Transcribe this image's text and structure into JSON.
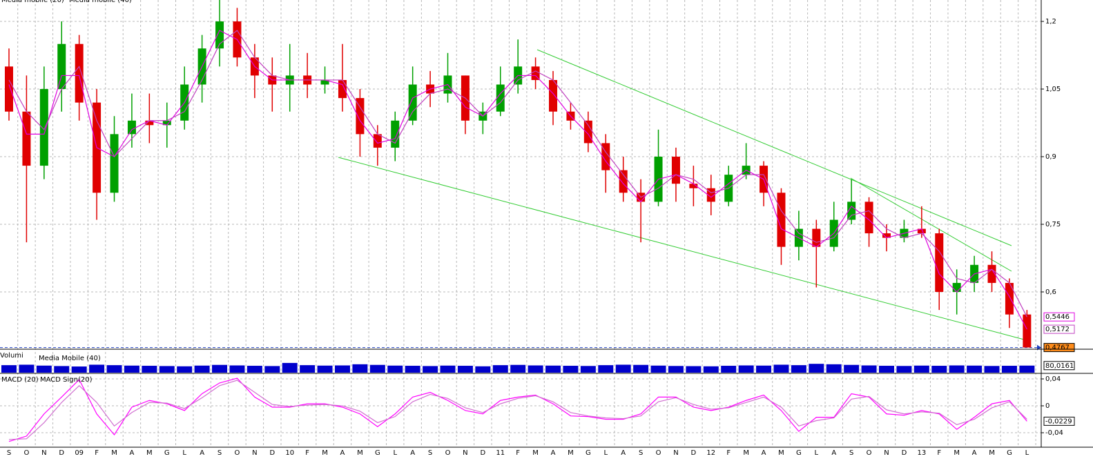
{
  "chart_data": [
    {
      "type": "candlestick",
      "categories": [
        "S",
        "O",
        "N",
        "D",
        "09",
        "F",
        "M",
        "A",
        "M",
        "G",
        "L",
        "A",
        "S",
        "O",
        "N",
        "D",
        "10",
        "F",
        "M",
        "A",
        "M",
        "G",
        "L",
        "A",
        "S",
        "O",
        "N",
        "D",
        "11",
        "F",
        "M",
        "A",
        "M",
        "G",
        "L",
        "A",
        "S",
        "O",
        "N",
        "D",
        "12",
        "F",
        "M",
        "A",
        "M",
        "G",
        "L",
        "A",
        "S",
        "O",
        "N",
        "D",
        "13",
        "F",
        "M",
        "A",
        "M",
        "G",
        "L"
      ],
      "year_label_color": "#e000e0",
      "open": [
        1.1,
        1.0,
        0.88,
        1.05,
        1.15,
        1.02,
        0.82,
        0.95,
        0.98,
        0.97,
        0.98,
        1.06,
        1.14,
        1.2,
        1.12,
        1.08,
        1.06,
        1.08,
        1.06,
        1.07,
        1.03,
        0.95,
        0.92,
        0.98,
        1.06,
        1.04,
        1.08,
        0.98,
        1.0,
        1.06,
        1.1,
        1.07,
        1.0,
        0.98,
        0.93,
        0.87,
        0.82,
        0.8,
        0.9,
        0.84,
        0.83,
        0.8,
        0.86,
        0.88,
        0.82,
        0.7,
        0.74,
        0.7,
        0.76,
        0.8,
        0.73,
        0.72,
        0.74,
        0.73,
        0.6,
        0.62,
        0.66,
        0.62,
        0.55
      ],
      "high": [
        1.14,
        1.08,
        1.1,
        1.2,
        1.17,
        1.05,
        0.99,
        1.04,
        1.04,
        1.02,
        1.1,
        1.17,
        1.25,
        1.23,
        1.15,
        1.12,
        1.15,
        1.13,
        1.1,
        1.15,
        1.05,
        0.97,
        1.0,
        1.1,
        1.09,
        1.13,
        1.08,
        1.02,
        1.1,
        1.16,
        1.12,
        1.09,
        1.02,
        1.0,
        0.95,
        0.9,
        0.85,
        0.96,
        0.92,
        0.88,
        0.86,
        0.88,
        0.93,
        0.89,
        0.83,
        0.78,
        0.76,
        0.8,
        0.85,
        0.81,
        0.75,
        0.76,
        0.79,
        0.74,
        0.65,
        0.68,
        0.69,
        0.63,
        0.56
      ],
      "low": [
        0.98,
        0.71,
        0.85,
        1.0,
        0.98,
        0.76,
        0.8,
        0.92,
        0.93,
        0.92,
        0.96,
        1.02,
        1.1,
        1.1,
        1.03,
        1.0,
        1.0,
        1.03,
        1.04,
        1.0,
        0.9,
        0.88,
        0.89,
        0.97,
        1.01,
        1.02,
        0.95,
        0.95,
        0.99,
        1.04,
        1.05,
        0.97,
        0.96,
        0.91,
        0.82,
        0.8,
        0.71,
        0.79,
        0.8,
        0.79,
        0.77,
        0.79,
        0.85,
        0.79,
        0.66,
        0.67,
        0.61,
        0.69,
        0.75,
        0.7,
        0.69,
        0.71,
        0.72,
        0.56,
        0.55,
        0.6,
        0.6,
        0.52,
        0.4767
      ],
      "close": [
        1.0,
        0.88,
        1.05,
        1.15,
        1.02,
        0.82,
        0.95,
        0.98,
        0.97,
        0.98,
        1.06,
        1.14,
        1.2,
        1.12,
        1.08,
        1.06,
        1.08,
        1.06,
        1.07,
        1.03,
        0.95,
        0.92,
        0.98,
        1.06,
        1.04,
        1.08,
        0.98,
        1.0,
        1.06,
        1.1,
        1.07,
        1.0,
        0.98,
        0.93,
        0.87,
        0.82,
        0.8,
        0.9,
        0.84,
        0.83,
        0.8,
        0.86,
        0.88,
        0.82,
        0.7,
        0.74,
        0.7,
        0.76,
        0.8,
        0.73,
        0.72,
        0.74,
        0.73,
        0.6,
        0.62,
        0.66,
        0.62,
        0.55,
        0.4767
      ],
      "up_color": "#00a000",
      "down_color": "#e00000",
      "series": [
        {
          "name": "Media mobile (20)",
          "color": "#e000e0",
          "values": [
            1.06,
            0.95,
            0.95,
            1.08,
            1.08,
            0.92,
            0.9,
            0.96,
            0.98,
            0.97,
            1.02,
            1.1,
            1.18,
            1.16,
            1.1,
            1.07,
            1.07,
            1.07,
            1.07,
            1.06,
            0.98,
            0.93,
            0.94,
            1.03,
            1.05,
            1.06,
            1.01,
            0.99,
            1.04,
            1.08,
            1.08,
            1.04,
            0.99,
            0.95,
            0.89,
            0.84,
            0.8,
            0.85,
            0.86,
            0.84,
            0.81,
            0.84,
            0.87,
            0.85,
            0.74,
            0.72,
            0.7,
            0.73,
            0.79,
            0.76,
            0.72,
            0.73,
            0.74,
            0.64,
            0.6,
            0.64,
            0.65,
            0.59,
            0.5172
          ]
        },
        {
          "name": "Media mobile (40)",
          "color": "#c040c0",
          "values": [
            1.07,
            1.0,
            0.96,
            1.05,
            1.1,
            0.98,
            0.9,
            0.94,
            0.98,
            0.98,
            1.0,
            1.07,
            1.15,
            1.18,
            1.12,
            1.08,
            1.07,
            1.07,
            1.07,
            1.07,
            1.01,
            0.95,
            0.93,
            1.0,
            1.04,
            1.05,
            1.03,
            0.99,
            1.02,
            1.07,
            1.09,
            1.07,
            1.02,
            0.97,
            0.91,
            0.86,
            0.81,
            0.83,
            0.86,
            0.85,
            0.82,
            0.83,
            0.86,
            0.86,
            0.78,
            0.73,
            0.71,
            0.72,
            0.77,
            0.78,
            0.74,
            0.72,
            0.73,
            0.69,
            0.63,
            0.62,
            0.65,
            0.62,
            0.5446
          ]
        }
      ],
      "last_labels": [
        {
          "value": 0.5446,
          "label": "0,5446",
          "color": "#e000e0"
        },
        {
          "value": 0.5172,
          "label": "0,5172",
          "color": "#c040c0"
        },
        {
          "value": 0.4767,
          "label": "0,4767",
          "color": "#ff8c1a"
        }
      ],
      "ylim": [
        0.4745,
        1.2475
      ],
      "yticks": [
        {
          "value": 0.6,
          "label": "0,6"
        },
        {
          "value": 0.75,
          "label": "0,75"
        },
        {
          "value": 0.9,
          "label": "0,9"
        },
        {
          "value": 1.05,
          "label": "1,05"
        },
        {
          "value": 1.2,
          "label": "1,2"
        }
      ],
      "grid": true
    },
    {
      "type": "bar",
      "title": "Volumi",
      "color": "#0000cc",
      "values": [
        85,
        90,
        80,
        75,
        70,
        90,
        85,
        80,
        78,
        75,
        72,
        80,
        88,
        82,
        78,
        75,
        110,
        85,
        80,
        82,
        95,
        88,
        80,
        78,
        75,
        80,
        78,
        72,
        85,
        88,
        82,
        80,
        78,
        76,
        85,
        90,
        88,
        80,
        76,
        74,
        72,
        78,
        82,
        80,
        90,
        85,
        100,
        95,
        88,
        82,
        78,
        76,
        80,
        78,
        82,
        80,
        76,
        78,
        80
      ],
      "ylim": [
        0,
        250
      ],
      "ma": {
        "name": "Media Mobile (40)",
        "color": "#e000e0",
        "value": 80.0161,
        "label": "80,0161"
      }
    },
    {
      "type": "line",
      "series": [
        {
          "name": "MACD (20)",
          "color": "#ff00ff",
          "values": [
            -0.053,
            -0.045,
            -0.012,
            0.013,
            0.039,
            -0.012,
            -0.043,
            -0.002,
            0.008,
            0.003,
            -0.007,
            0.018,
            0.034,
            0.041,
            0.013,
            -0.002,
            -0.002,
            0.003,
            0.003,
            -0.002,
            -0.012,
            -0.031,
            -0.012,
            0.013,
            0.02,
            0.008,
            -0.007,
            -0.012,
            0.008,
            0.013,
            0.016,
            0.003,
            -0.015,
            -0.016,
            -0.02,
            -0.02,
            -0.012,
            0.013,
            0.013,
            -0.002,
            -0.007,
            -0.002,
            0.008,
            0.016,
            -0.007,
            -0.038,
            -0.017,
            -0.017,
            0.018,
            0.013,
            -0.012,
            -0.014,
            -0.007,
            -0.012,
            -0.035,
            -0.017,
            0.003,
            0.008,
            -0.0229
          ]
        },
        {
          "name": "MACD Sign(20)",
          "color": "#d070d0",
          "values": [
            -0.05,
            -0.049,
            -0.025,
            0.005,
            0.03,
            0.005,
            -0.03,
            -0.01,
            0.005,
            0.004,
            -0.004,
            0.012,
            0.03,
            0.038,
            0.02,
            0.002,
            -0.001,
            0.001,
            0.002,
            0.0,
            -0.008,
            -0.025,
            -0.016,
            0.006,
            0.017,
            0.011,
            -0.003,
            -0.01,
            0.003,
            0.011,
            0.015,
            0.006,
            -0.01,
            -0.015,
            -0.018,
            -0.019,
            -0.015,
            0.006,
            0.012,
            0.002,
            -0.005,
            -0.003,
            0.005,
            0.013,
            -0.002,
            -0.03,
            -0.022,
            -0.018,
            0.01,
            0.014,
            -0.006,
            -0.012,
            -0.009,
            -0.011,
            -0.028,
            -0.02,
            -0.003,
            0.006,
            -0.02
          ]
        }
      ],
      "last_label": {
        "value": -0.0229,
        "label": "-0,0229"
      },
      "ylim": [
        -0.0615,
        0.0462
      ],
      "yticks": [
        {
          "value": -0.04,
          "label": "-0,04"
        },
        0,
        {
          "value": 0.04,
          "label": "0,04"
        }
      ],
      "grid": true
    }
  ]
}
